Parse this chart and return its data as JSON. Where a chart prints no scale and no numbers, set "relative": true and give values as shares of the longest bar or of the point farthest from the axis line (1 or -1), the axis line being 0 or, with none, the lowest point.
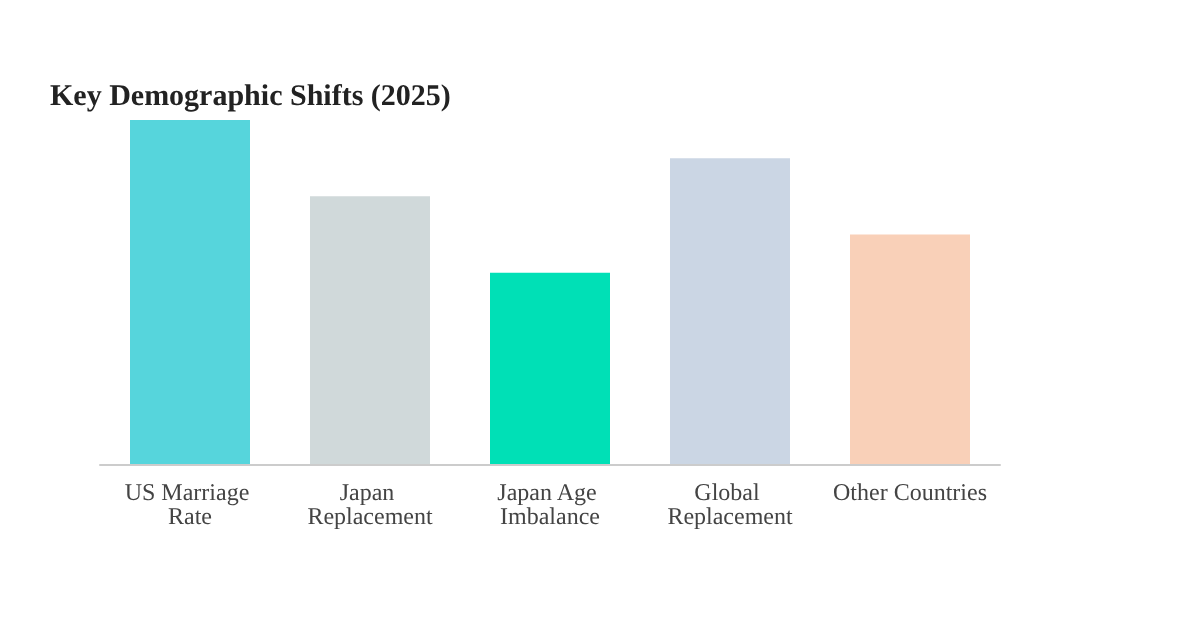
{
  "chart_data": {
    "type": "bar",
    "title": "Key Demographic Shifts (2025)",
    "relative": true,
    "categories": [
      "US Marriage Rate",
      "Japan Replacement",
      "Japan Age Imbalance",
      "Global Replacement",
      "Other Countries"
    ],
    "values": [
      1,
      0.778,
      0.556,
      0.889,
      0.667
    ],
    "colors": [
      "#56d5dc",
      "#d0d9da",
      "#00e0b6",
      "#cbd6e4",
      "#f9d0b8"
    ]
  }
}
